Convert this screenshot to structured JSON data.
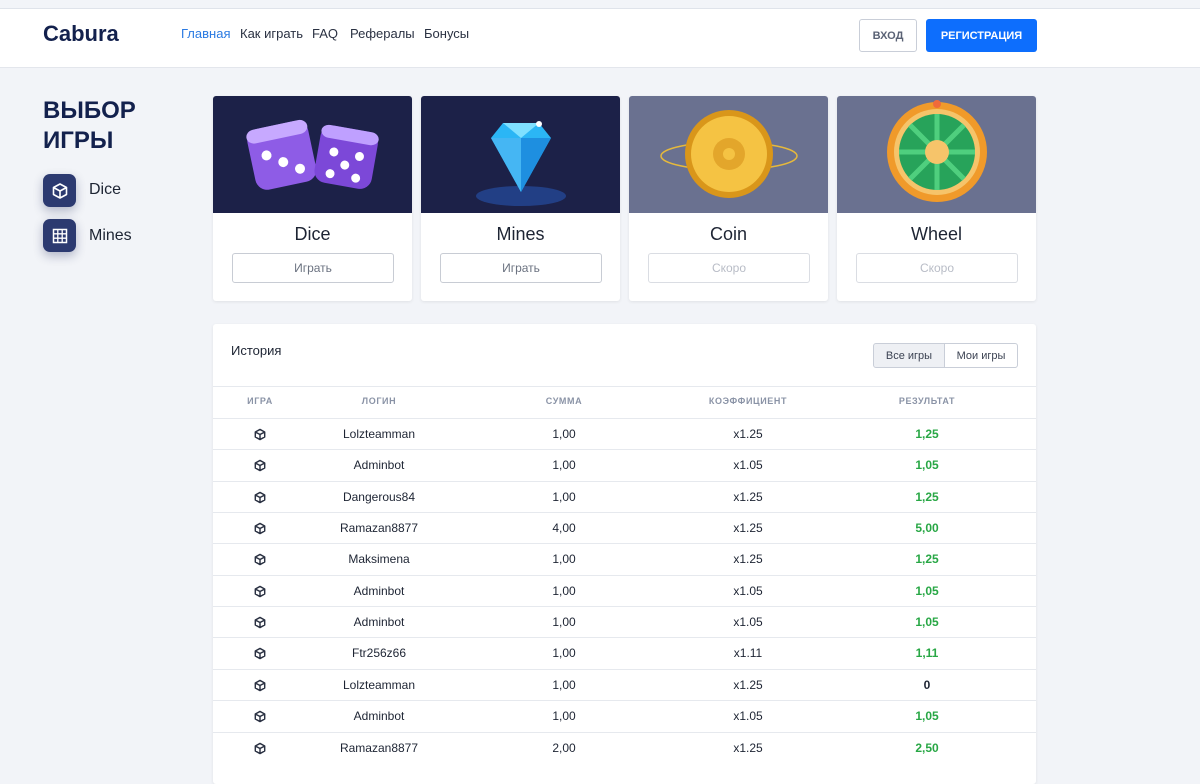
{
  "header": {
    "logo": "Cabura",
    "nav": [
      "Главная",
      "Как играть",
      "FAQ",
      "Рефералы",
      "Бонусы"
    ],
    "login": "ВХОД",
    "register": "РЕГИСТРАЦИЯ"
  },
  "sidebar": {
    "title": "ВЫБОР ИГРЫ",
    "games": [
      "Dice",
      "Mines"
    ]
  },
  "games": [
    {
      "name": "Dice",
      "button": "Играть"
    },
    {
      "name": "Mines",
      "button": "Играть"
    },
    {
      "name": "Coin",
      "button": "Скоро"
    },
    {
      "name": "Wheel",
      "button": "Скоро"
    }
  ],
  "history": {
    "title": "История",
    "tabs": [
      "Все игры",
      "Мои игры"
    ],
    "columns": [
      "ИГРА",
      "ЛОГИН",
      "СУММА",
      "КОЭФФИЦИЕНТ",
      "РЕЗУЛЬТАТ"
    ],
    "rows": [
      [
        "Lolzteamman",
        "1,00",
        "x1.25",
        "1,25"
      ],
      [
        "Adminbot",
        "1,00",
        "x1.05",
        "1,05"
      ],
      [
        "Dangerous84",
        "1,00",
        "x1.25",
        "1,25"
      ],
      [
        "Ramazan8877",
        "4,00",
        "x1.25",
        "5,00"
      ],
      [
        "Maksimena",
        "1,00",
        "x1.25",
        "1,25"
      ],
      [
        "Adminbot",
        "1,00",
        "x1.05",
        "1,05"
      ],
      [
        "Adminbot",
        "1,00",
        "x1.05",
        "1,05"
      ],
      [
        "Ftr256z66",
        "1,00",
        "x1.11",
        "1,11"
      ],
      [
        "Lolzteamman",
        "1,00",
        "x1.25",
        "0"
      ],
      [
        "Adminbot",
        "1,00",
        "x1.05",
        "1,05"
      ],
      [
        "Ramazan8877",
        "2,00",
        "x1.25",
        "2,50"
      ]
    ]
  }
}
